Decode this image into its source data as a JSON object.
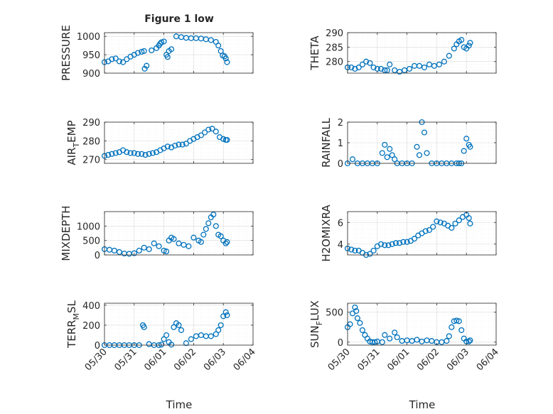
{
  "figure": {
    "title": "Figure 1 low",
    "xlabel": "Time",
    "x_ticks": [
      "05/30",
      "05/31",
      "06/01",
      "06/02",
      "06/03",
      "06/04"
    ],
    "marker_color": "#0072BD"
  },
  "chart_data": [
    {
      "type": "scatter",
      "marker": "circle-open",
      "name": "PRESSURE",
      "ylabel": "PRESSURE",
      "ylim": [
        900,
        1010
      ],
      "yticks": [
        900,
        950,
        1000
      ],
      "grid": true,
      "x": [
        "05/30 00:00",
        "05/30 03:00",
        "05/30 06:00",
        "05/30 09:00",
        "05/30 12:00",
        "05/30 15:00",
        "05/30 18:00",
        "05/30 21:00",
        "05/31 00:00",
        "05/31 03:00",
        "05/31 06:00",
        "05/31 08:00",
        "05/31 08:30",
        "05/31 10:00",
        "05/31 14:00",
        "05/31 18:00",
        "05/31 20:00",
        "05/31 21:00",
        "05/31 22:00",
        "06/01 00:00",
        "06/01 02:00",
        "06/01 03:00",
        "06/01 04:00",
        "06/01 06:00",
        "06/01 10:00",
        "06/01 14:00",
        "06/01 18:00",
        "06/01 22:00",
        "06/02 02:00",
        "06/02 06:00",
        "06/02 10:00",
        "06/02 14:00",
        "06/02 18:00",
        "06/02 20:00",
        "06/02 22:00",
        "06/02 23:30",
        "06/03 01:00",
        "06/03 02:00",
        "06/03 03:00"
      ],
      "y": [
        930,
        932,
        938,
        940,
        932,
        930,
        938,
        945,
        950,
        955,
        958,
        960,
        912,
        920,
        962,
        968,
        975,
        980,
        984,
        986,
        950,
        944,
        960,
        965,
        1000,
        998,
        996,
        995,
        995,
        994,
        992,
        990,
        985,
        975,
        960,
        948,
        946,
        940,
        930
      ]
    },
    {
      "type": "scatter",
      "marker": "circle-open",
      "name": "THETA",
      "ylabel": "THETA",
      "ylim": [
        276,
        290
      ],
      "yticks": [
        280,
        285,
        290
      ],
      "grid": true,
      "x": [
        "05/30 00:00",
        "05/30 03:00",
        "05/30 06:00",
        "05/30 09:00",
        "05/30 12:00",
        "05/30 15:00",
        "05/30 18:00",
        "05/30 21:00",
        "05/31 00:00",
        "05/31 03:00",
        "05/31 06:00",
        "05/31 08:00",
        "05/31 10:00",
        "05/31 14:00",
        "05/31 18:00",
        "05/31 22:00",
        "06/01 02:00",
        "06/01 06:00",
        "06/01 10:00",
        "06/01 14:00",
        "06/01 18:00",
        "06/01 22:00",
        "06/02 02:00",
        "06/02 06:00",
        "06/02 10:00",
        "06/02 14:00",
        "06/02 16:00",
        "06/02 18:00",
        "06/02 20:00",
        "06/02 22:00",
        "06/03 00:00",
        "06/03 02:00",
        "06/03 03:00"
      ],
      "y": [
        278,
        278,
        277.5,
        278,
        279,
        280,
        279.5,
        278,
        277.5,
        277.5,
        277,
        277,
        279,
        277,
        276.5,
        277,
        277.5,
        278.5,
        278.5,
        278,
        279,
        278.5,
        279,
        280,
        282,
        284.5,
        286,
        287,
        287.5,
        285,
        284.5,
        285.5,
        286.5
      ]
    },
    {
      "type": "scatter",
      "marker": "circle-open",
      "name": "AIR_TEMP",
      "ylabel": "AIR_TEMP",
      "ylim": [
        268,
        290
      ],
      "yticks": [
        270,
        280,
        290
      ],
      "grid": true,
      "x": [
        "05/30 00:00",
        "05/30 03:00",
        "05/30 06:00",
        "05/30 09:00",
        "05/30 12:00",
        "05/30 15:00",
        "05/30 18:00",
        "05/30 21:00",
        "05/31 00:00",
        "05/31 03:00",
        "05/31 06:00",
        "05/31 09:00",
        "05/31 12:00",
        "05/31 15:00",
        "05/31 18:00",
        "05/31 21:00",
        "06/01 00:00",
        "06/01 03:00",
        "06/01 06:00",
        "06/01 09:00",
        "06/01 12:00",
        "06/01 15:00",
        "06/01 18:00",
        "06/01 21:00",
        "06/02 00:00",
        "06/02 03:00",
        "06/02 06:00",
        "06/02 09:00",
        "06/02 12:00",
        "06/02 15:00",
        "06/02 18:00",
        "06/02 21:00",
        "06/03 00:00",
        "06/03 02:00",
        "06/03 03:00"
      ],
      "y": [
        272,
        272.5,
        273,
        273.5,
        274,
        275,
        274,
        273.5,
        273.5,
        273,
        273,
        272.5,
        273,
        273.5,
        274,
        275,
        276,
        277,
        276.5,
        277.5,
        278,
        278,
        278.5,
        280,
        281,
        282,
        283,
        284.5,
        286,
        286.5,
        285,
        282,
        281,
        280.5,
        280.5
      ]
    },
    {
      "type": "scatter",
      "marker": "circle-open",
      "name": "RAINFALL",
      "ylabel": "RAINFALL",
      "ylim": [
        0,
        2
      ],
      "yticks": [
        0,
        1,
        2
      ],
      "grid": true,
      "x": [
        "05/30 00:00",
        "05/30 04:00",
        "05/30 08:00",
        "05/30 12:00",
        "05/30 16:00",
        "05/30 20:00",
        "05/31 00:00",
        "05/31 04:00",
        "05/31 06:00",
        "05/31 08:00",
        "05/31 10:00",
        "05/31 12:00",
        "05/31 14:00",
        "05/31 16:00",
        "05/31 20:00",
        "06/01 00:00",
        "06/01 04:00",
        "06/01 08:00",
        "06/01 10:00",
        "06/01 12:00",
        "06/01 14:00",
        "06/01 16:00",
        "06/01 20:00",
        "06/02 00:00",
        "06/02 04:00",
        "06/02 08:00",
        "06/02 12:00",
        "06/02 16:00",
        "06/02 18:00",
        "06/02 20:00",
        "06/02 22:00",
        "06/03 00:00",
        "06/03 02:00",
        "06/03 03:00"
      ],
      "y": [
        0,
        0.2,
        0,
        0,
        0,
        0,
        0,
        0.5,
        0.9,
        0.3,
        0.7,
        0.4,
        0.2,
        0,
        0,
        0,
        0,
        0.8,
        0.4,
        2,
        1.5,
        0.5,
        0,
        0,
        0,
        0,
        0,
        0,
        0,
        0,
        0.6,
        1.2,
        0.9,
        0.8
      ]
    },
    {
      "type": "scatter",
      "marker": "circle-open",
      "name": "MIXDEPTH",
      "ylabel": "MIXDEPTH",
      "ylim": [
        0,
        1500
      ],
      "yticks": [
        0,
        500,
        1000
      ],
      "grid": true,
      "x": [
        "05/30 00:00",
        "05/30 04:00",
        "05/30 08:00",
        "05/30 12:00",
        "05/30 16:00",
        "05/30 20:00",
        "05/31 00:00",
        "05/31 04:00",
        "05/31 08:00",
        "05/31 12:00",
        "05/31 16:00",
        "05/31 20:00",
        "06/01 00:00",
        "06/01 02:00",
        "06/01 04:00",
        "06/01 06:00",
        "06/01 08:00",
        "06/01 12:00",
        "06/01 16:00",
        "06/01 20:00",
        "06/02 00:00",
        "06/02 04:00",
        "06/02 06:00",
        "06/02 08:00",
        "06/02 10:00",
        "06/02 12:00",
        "06/02 14:00",
        "06/02 16:00",
        "06/02 18:00",
        "06/02 20:00",
        "06/02 22:00",
        "06/03 00:00",
        "06/03 02:00",
        "06/03 03:00"
      ],
      "y": [
        200,
        180,
        150,
        100,
        50,
        40,
        60,
        150,
        250,
        200,
        400,
        300,
        150,
        120,
        500,
        600,
        550,
        400,
        350,
        300,
        600,
        500,
        450,
        700,
        900,
        1100,
        1300,
        1400,
        1000,
        700,
        650,
        500,
        400,
        450
      ]
    },
    {
      "type": "scatter",
      "marker": "circle-open",
      "name": "H2OMIXRA",
      "ylabel": "H2OMIXRA",
      "ylim": [
        3,
        7
      ],
      "yticks": [
        4,
        6
      ],
      "grid": true,
      "x": [
        "05/30 00:00",
        "05/30 03:00",
        "05/30 06:00",
        "05/30 09:00",
        "05/30 12:00",
        "05/30 15:00",
        "05/30 18:00",
        "05/30 21:00",
        "05/31 00:00",
        "05/31 03:00",
        "05/31 06:00",
        "05/31 09:00",
        "05/31 12:00",
        "05/31 15:00",
        "05/31 18:00",
        "05/31 21:00",
        "06/01 00:00",
        "06/01 03:00",
        "06/01 06:00",
        "06/01 09:00",
        "06/01 12:00",
        "06/01 15:00",
        "06/01 18:00",
        "06/01 21:00",
        "06/02 00:00",
        "06/02 03:00",
        "06/02 06:00",
        "06/02 09:00",
        "06/02 12:00",
        "06/02 15:00",
        "06/02 18:00",
        "06/02 21:00",
        "06/03 00:00",
        "06/03 02:00",
        "06/03 03:00"
      ],
      "y": [
        3.6,
        3.5,
        3.4,
        3.4,
        3.2,
        3.0,
        3.1,
        3.4,
        3.8,
        4.0,
        3.9,
        3.9,
        4.0,
        4.1,
        4.1,
        4.2,
        4.2,
        4.3,
        4.5,
        4.8,
        5.0,
        5.2,
        5.3,
        5.6,
        6.1,
        6.0,
        5.9,
        5.7,
        5.5,
        5.9,
        6.2,
        6.5,
        6.7,
        6.4,
        5.9
      ]
    },
    {
      "type": "scatter",
      "marker": "circle-open",
      "name": "TERR_MSL",
      "ylabel": "TERR_MSL",
      "ylim": [
        0,
        420
      ],
      "yticks": [
        0,
        200,
        400
      ],
      "grid": true,
      "x": [
        "05/30 00:00",
        "05/30 04:00",
        "05/30 08:00",
        "05/30 12:00",
        "05/30 16:00",
        "05/30 20:00",
        "05/31 00:00",
        "05/31 04:00",
        "05/31 07:00",
        "05/31 08:00",
        "05/31 12:00",
        "05/31 16:00",
        "05/31 20:00",
        "05/31 22:00",
        "06/01 00:00",
        "06/01 02:00",
        "06/01 04:00",
        "06/01 06:00",
        "06/01 08:00",
        "06/01 10:00",
        "06/01 12:00",
        "06/01 14:00",
        "06/01 18:00",
        "06/01 22:00",
        "06/02 02:00",
        "06/02 06:00",
        "06/02 10:00",
        "06/02 14:00",
        "06/02 18:00",
        "06/02 20:00",
        "06/02 22:00",
        "06/03 00:00",
        "06/03 02:00",
        "06/03 03:00"
      ],
      "y": [
        0,
        0,
        0,
        0,
        0,
        0,
        0,
        0,
        200,
        180,
        10,
        0,
        0,
        5,
        60,
        100,
        30,
        5,
        180,
        220,
        200,
        150,
        20,
        60,
        90,
        100,
        90,
        90,
        110,
        150,
        200,
        290,
        330,
        300
      ]
    },
    {
      "type": "scatter",
      "marker": "circle-open",
      "name": "SUN_FLUX",
      "ylabel": "SUN_FLUX",
      "ylim": [
        -50,
        650
      ],
      "yticks": [
        0,
        500
      ],
      "grid": true,
      "x": [
        "05/30 00:00",
        "05/30 02:00",
        "05/30 04:00",
        "05/30 06:00",
        "05/30 07:00",
        "05/30 08:00",
        "05/30 10:00",
        "05/30 12:00",
        "05/30 14:00",
        "05/30 16:00",
        "05/30 18:00",
        "05/30 20:00",
        "05/30 22:00",
        "05/31 00:00",
        "05/31 04:00",
        "05/31 06:00",
        "05/31 10:00",
        "05/31 14:00",
        "05/31 16:00",
        "05/31 20:00",
        "06/01 00:00",
        "06/01 04:00",
        "06/01 08:00",
        "06/01 12:00",
        "06/01 16:00",
        "06/01 20:00",
        "06/02 00:00",
        "06/02 04:00",
        "06/02 08:00",
        "06/02 10:00",
        "06/02 12:00",
        "06/02 14:00",
        "06/02 16:00",
        "06/02 18:00",
        "06/02 20:00",
        "06/02 22:00",
        "06/03 00:00",
        "06/03 02:00",
        "06/03 03:00"
      ],
      "y": [
        250,
        300,
        480,
        580,
        520,
        400,
        320,
        200,
        120,
        60,
        10,
        0,
        0,
        10,
        0,
        120,
        60,
        160,
        80,
        20,
        30,
        20,
        40,
        10,
        30,
        20,
        0,
        0,
        20,
        100,
        250,
        350,
        360,
        350,
        200,
        60,
        10,
        10,
        30
      ]
    }
  ]
}
